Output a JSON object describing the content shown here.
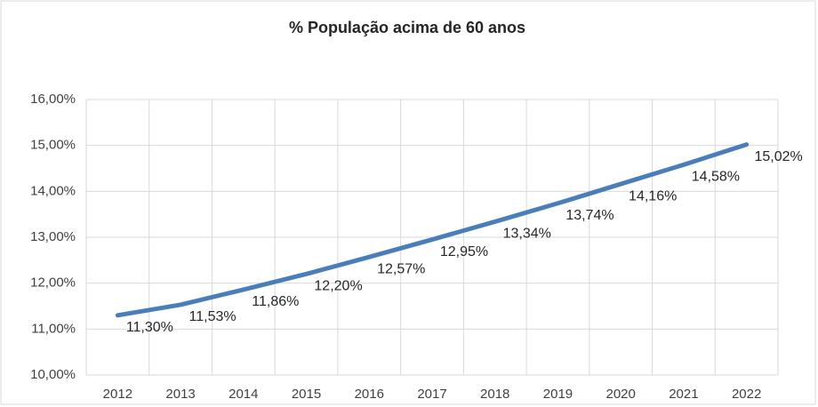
{
  "chart_data": {
    "type": "line",
    "title": "% População acima de 60 anos",
    "categories": [
      "2012",
      "2013",
      "2014",
      "2015",
      "2016",
      "2017",
      "2018",
      "2019",
      "2020",
      "2021",
      "2022"
    ],
    "series": [
      {
        "name": null,
        "color": "#4a7ebb",
        "values": [
          11.3,
          11.53,
          11.86,
          12.2,
          12.57,
          12.95,
          13.34,
          13.74,
          14.16,
          14.58,
          15.02
        ],
        "value_labels": [
          "11,30%",
          "11,53%",
          "11,86%",
          "12,20%",
          "12,57%",
          "12,95%",
          "13,34%",
          "13,74%",
          "14,16%",
          "14,58%",
          "15,02%"
        ]
      }
    ],
    "ylim": [
      10,
      16
    ],
    "yticks": [
      {
        "value": 10,
        "label": "10,00%"
      },
      {
        "value": 11,
        "label": "11,00%"
      },
      {
        "value": 12,
        "label": "12,00%"
      },
      {
        "value": 13,
        "label": "13,00%"
      },
      {
        "value": 14,
        "label": "14,00%"
      },
      {
        "value": 15,
        "label": "15,00%"
      },
      {
        "value": 16,
        "label": "16,00%"
      }
    ],
    "grid": true
  }
}
